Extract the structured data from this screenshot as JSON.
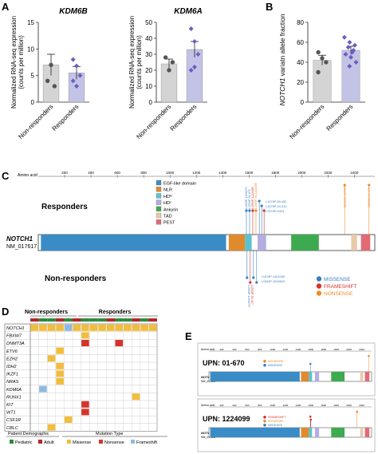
{
  "panels": {
    "a": "A",
    "b": "B",
    "c": "C",
    "d": "D",
    "e": "E"
  },
  "panel_a": {
    "chart_data": [
      {
        "type": "bar",
        "title": "KDM6B",
        "ylabel_line1": "Normalized RNA-seq expression",
        "ylabel_line2": "(counts per million)",
        "categories": [
          "Non-responders",
          "Responders"
        ],
        "values": [
          7.0,
          5.5
        ],
        "errors": [
          2.0,
          1.2
        ],
        "ylim": [
          0,
          15
        ],
        "yticks": [
          "0",
          "5",
          "10",
          "15"
        ],
        "points": [
          [
            4,
            7,
            3
          ],
          [
            8,
            6.8,
            5,
            4,
            3
          ]
        ],
        "colors": [
          "#d4d4d4",
          "#c3c3e6"
        ],
        "point_colors": [
          "#555555",
          "#6b5fbf"
        ]
      },
      {
        "type": "bar",
        "title": "KDM6A",
        "ylabel_line1": "Normalized RNA-seq expression",
        "ylabel_line2": "(counts per million)",
        "categories": [
          "Non-responders",
          "Responders"
        ],
        "values": [
          24,
          33
        ],
        "errors": [
          3,
          5
        ],
        "ylim": [
          0,
          50
        ],
        "yticks": [
          "0",
          "10",
          "20",
          "30",
          "40",
          "50"
        ],
        "points": [
          [
            28,
            20,
            25
          ],
          [
            46,
            38,
            30,
            20,
            22
          ]
        ],
        "colors": [
          "#d4d4d4",
          "#c3c3e6"
        ],
        "point_colors": [
          "#555555",
          "#6b5fbf"
        ]
      }
    ]
  },
  "panel_b": {
    "chart_data": {
      "type": "bar",
      "ylabel_gene": "NOTCH1",
      "ylabel_rest": " variatn allele fraction",
      "categories": [
        "Non-responders",
        "Responders"
      ],
      "values": [
        42,
        52
      ],
      "errors": [
        5,
        4
      ],
      "ylim": [
        0,
        80
      ],
      "yticks": [
        "0",
        "20",
        "40",
        "60",
        "80"
      ],
      "points": [
        [
          50,
          44,
          40,
          30
        ],
        [
          65,
          60,
          57,
          55,
          52,
          50,
          48,
          45,
          40,
          36
        ]
      ],
      "colors": [
        "#d4d4d4",
        "#c3c3e6"
      ],
      "point_colors": [
        "#555555",
        "#6b5fbf"
      ]
    }
  },
  "panel_c": {
    "axis_label": "Amino acid",
    "ticks": [
      "200",
      "400",
      "600",
      "800",
      "1000",
      "1200",
      "1400",
      "1600",
      "1800",
      "2000",
      "2200",
      "2400"
    ],
    "responders_label": "Responders",
    "nonresponders_label": "Non-responders",
    "gene": "NOTCH1",
    "refseq": "NM_017617",
    "domain_legend": [
      {
        "label": "EGF-like domain",
        "color": "#3a8cc6"
      },
      {
        "label": "NLR",
        "color": "#e08a2e"
      },
      {
        "label": "HDᴺ",
        "color": "#5bc2d2"
      },
      {
        "label": "HDᶜ",
        "color": "#b4addf"
      },
      {
        "label": "Ankyrin",
        "color": "#3eaa4f"
      },
      {
        "label": "TAD",
        "color": "#e8c9a8"
      },
      {
        "label": "PEST",
        "color": "#e36a75"
      }
    ],
    "responder_mutations_cluster": [
      "L1593P-1409273",
      "L1593P-01-670",
      "L1593P-1224099",
      "L1593P-mi-1224099"
    ],
    "responder_mutations_list": [
      "L1678P-89-452",
      "L1678P-04-310",
      "L1678P-K424"
    ],
    "responder_far": [
      "Q2326X-1224099",
      "S2511fs-01-670"
    ],
    "nonresponder_mutations": [
      "L1678P-1402405",
      "L1593P-1515818",
      "L1593P-1409273",
      "L1593P-93-417"
    ],
    "mut_legend": [
      {
        "label": "MISSENSE",
        "color": "#3a7fc4"
      },
      {
        "label": "FRAMESHIFT",
        "color": "#d6342b"
      },
      {
        "label": "NONSENSE",
        "color": "#ee8b2a"
      }
    ]
  },
  "panel_d": {
    "group_nonresponders": "Non-responders",
    "group_responders": "Responders",
    "genes": [
      "NOTCH1",
      "FBXW7",
      "DNMT3A",
      "ETV6",
      "EZH2",
      "IDH2",
      "IKZF1",
      "NRAS",
      "KDM6A",
      "RUNX1",
      "KIT",
      "WT1",
      "CSF1R",
      "CBLC"
    ],
    "demo_legend_title": "Patient Demographic",
    "demo_pediatric": "Pediatric",
    "demo_adult": "Adult",
    "mut_legend_title": "Mutation Type",
    "mut_missense": "Missense",
    "mut_nonsense": "Nonsense",
    "mut_frameshift": "Frameshift"
  },
  "panel_e": {
    "axis_label": "Amino acid",
    "case1_upn": "UPN: 01-670",
    "case2_upn": "UPN: 1224099",
    "gene": "NOTCH1",
    "refseq": "NM_017617",
    "ticks": [
      "200",
      "400",
      "600",
      "800",
      "1000",
      "1200",
      "1400",
      "1600",
      "1800",
      "2000",
      "2200",
      "2400"
    ],
    "case1_labels": [
      "NONSENSE",
      "MISSENSE"
    ],
    "case2_labels": [
      "FRAMESHIFT",
      "NONSENSE",
      "MISSENSE"
    ]
  },
  "colors": {
    "egf": "#3a8cc6",
    "nlr": "#e08a2e",
    "hdn": "#5bc2d2",
    "hdc": "#b4addf",
    "ankyrin": "#3eaa4f",
    "tad": "#e8c9a8",
    "pest": "#e36a75",
    "missense": "#3a7fc4",
    "frameshift": "#d6342b",
    "nonsense": "#ee8b2a",
    "pediatric": "#2f8a3a",
    "adult": "#b3262a",
    "oncoprint_missense": "#f1bd3d",
    "oncoprint_nonsense": "#d6342b",
    "oncoprint_frameshift": "#8fb9e0"
  }
}
